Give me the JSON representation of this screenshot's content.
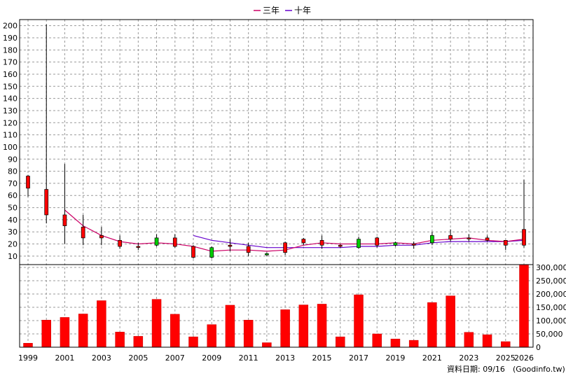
{
  "chart_data": {
    "type": "candlestick+bar",
    "legend": [
      {
        "label": "三年",
        "color": "#cc0066"
      },
      {
        "label": "十年",
        "color": "#6600cc"
      }
    ],
    "price_axis": {
      "ticks": [
        10,
        20,
        30,
        40,
        50,
        60,
        70,
        80,
        90,
        100,
        110,
        120,
        130,
        140,
        150,
        160,
        170,
        180,
        190,
        200
      ],
      "ylim": [
        3,
        205
      ]
    },
    "volume_axis": {
      "ticks": [
        0,
        50000,
        100000,
        150000,
        200000,
        250000,
        300000
      ],
      "tick_labels": [
        "0",
        "50,000",
        "100,000",
        "150,000",
        "200,000",
        "250,000",
        "300,000"
      ],
      "ylim": [
        0,
        300000
      ]
    },
    "x_axis": {
      "range": [
        1999,
        2026
      ],
      "tick_labels": [
        "1999",
        "2001",
        "2003",
        "2005",
        "2007",
        "2009",
        "2011",
        "2013",
        "2015",
        "2017",
        "2019",
        "2021",
        "2023",
        "2025",
        "2026"
      ]
    },
    "candles": [
      {
        "year": 1999,
        "open": 66,
        "close": 76,
        "high": 77,
        "low": 59
      },
      {
        "year": 2000,
        "open": 44,
        "close": 65,
        "high": 201,
        "low": 37
      },
      {
        "year": 2001,
        "open": 35,
        "close": 44,
        "high": 86,
        "low": 20
      },
      {
        "year": 2002,
        "open": 25,
        "close": 34,
        "high": 44,
        "low": 19
      },
      {
        "year": 2003,
        "open": 25,
        "close": 27,
        "high": 34,
        "low": 19
      },
      {
        "year": 2004,
        "open": 18,
        "close": 23,
        "high": 27,
        "low": 16
      },
      {
        "year": 2005,
        "open": 18,
        "close": 18,
        "high": 21,
        "low": 15
      },
      {
        "year": 2006,
        "open": 25,
        "close": 19,
        "high": 28,
        "low": 18
      },
      {
        "year": 2007,
        "open": 18,
        "close": 25,
        "high": 28,
        "low": 17
      },
      {
        "year": 2008,
        "open": 9,
        "close": 18,
        "high": 19,
        "low": 8
      },
      {
        "year": 2009,
        "open": 17,
        "close": 9,
        "high": 18,
        "low": 8
      },
      {
        "year": 2010,
        "open": 18,
        "close": 19,
        "high": 24,
        "low": 14
      },
      {
        "year": 2011,
        "open": 13,
        "close": 18,
        "high": 21,
        "low": 10
      },
      {
        "year": 2012,
        "open": 12,
        "close": 11,
        "high": 13,
        "low": 10
      },
      {
        "year": 2013,
        "open": 13,
        "close": 21,
        "high": 22,
        "low": 11
      },
      {
        "year": 2014,
        "open": 21,
        "close": 24,
        "high": 25,
        "low": 19
      },
      {
        "year": 2015,
        "open": 19,
        "close": 23,
        "high": 27,
        "low": 16
      },
      {
        "year": 2016,
        "open": 18,
        "close": 19,
        "high": 20,
        "low": 17
      },
      {
        "year": 2017,
        "open": 24,
        "close": 17,
        "high": 26,
        "low": 16
      },
      {
        "year": 2018,
        "open": 19,
        "close": 25,
        "high": 26,
        "low": 17
      },
      {
        "year": 2019,
        "open": 21,
        "close": 19,
        "high": 22,
        "low": 18
      },
      {
        "year": 2020,
        "open": 19,
        "close": 20,
        "high": 22,
        "low": 16
      },
      {
        "year": 2021,
        "open": 27,
        "close": 21,
        "high": 30,
        "low": 19
      },
      {
        "year": 2022,
        "open": 24,
        "close": 27,
        "high": 32,
        "low": 22
      },
      {
        "year": 2023,
        "open": 25,
        "close": 25,
        "high": 28,
        "low": 22
      },
      {
        "year": 2024,
        "open": 23,
        "close": 25,
        "high": 27,
        "low": 22
      },
      {
        "year": 2025,
        "open": 19,
        "close": 23,
        "high": 23,
        "low": 15
      },
      {
        "year": 2026,
        "open": 19,
        "close": 32,
        "high": 73,
        "low": 17
      }
    ],
    "ma3": [
      {
        "year": 2001,
        "value": 48
      },
      {
        "year": 2002,
        "value": 35
      },
      {
        "year": 2003,
        "value": 27
      },
      {
        "year": 2004,
        "value": 22
      },
      {
        "year": 2005,
        "value": 20
      },
      {
        "year": 2006,
        "value": 21
      },
      {
        "year": 2007,
        "value": 20
      },
      {
        "year": 2008,
        "value": 18
      },
      {
        "year": 2009,
        "value": 14
      },
      {
        "year": 2010,
        "value": 15
      },
      {
        "year": 2011,
        "value": 15
      },
      {
        "year": 2012,
        "value": 14
      },
      {
        "year": 2013,
        "value": 15
      },
      {
        "year": 2014,
        "value": 19
      },
      {
        "year": 2015,
        "value": 21
      },
      {
        "year": 2016,
        "value": 20
      },
      {
        "year": 2017,
        "value": 20
      },
      {
        "year": 2018,
        "value": 20
      },
      {
        "year": 2019,
        "value": 21
      },
      {
        "year": 2020,
        "value": 20
      },
      {
        "year": 2021,
        "value": 23
      },
      {
        "year": 2022,
        "value": 24
      },
      {
        "year": 2023,
        "value": 25
      },
      {
        "year": 2024,
        "value": 23
      },
      {
        "year": 2025,
        "value": 22
      },
      {
        "year": 2026,
        "value": 24
      }
    ],
    "ma10": [
      {
        "year": 2008,
        "value": 27
      },
      {
        "year": 2009,
        "value": 23
      },
      {
        "year": 2010,
        "value": 21
      },
      {
        "year": 2011,
        "value": 19
      },
      {
        "year": 2012,
        "value": 17
      },
      {
        "year": 2013,
        "value": 17
      },
      {
        "year": 2014,
        "value": 17
      },
      {
        "year": 2015,
        "value": 17
      },
      {
        "year": 2016,
        "value": 17
      },
      {
        "year": 2017,
        "value": 18
      },
      {
        "year": 2018,
        "value": 18
      },
      {
        "year": 2019,
        "value": 19
      },
      {
        "year": 2020,
        "value": 19
      },
      {
        "year": 2021,
        "value": 21
      },
      {
        "year": 2022,
        "value": 22
      },
      {
        "year": 2023,
        "value": 22
      },
      {
        "year": 2024,
        "value": 22
      },
      {
        "year": 2025,
        "value": 22
      },
      {
        "year": 2026,
        "value": 23
      }
    ],
    "volumes": [
      {
        "year": 1999,
        "value": 15000
      },
      {
        "year": 2000,
        "value": 102000
      },
      {
        "year": 2001,
        "value": 112000
      },
      {
        "year": 2002,
        "value": 125000
      },
      {
        "year": 2003,
        "value": 175000
      },
      {
        "year": 2004,
        "value": 57000
      },
      {
        "year": 2005,
        "value": 41000
      },
      {
        "year": 2006,
        "value": 180000
      },
      {
        "year": 2007,
        "value": 124000
      },
      {
        "year": 2008,
        "value": 39000
      },
      {
        "year": 2009,
        "value": 85000
      },
      {
        "year": 2010,
        "value": 158000
      },
      {
        "year": 2011,
        "value": 102000
      },
      {
        "year": 2012,
        "value": 17000
      },
      {
        "year": 2013,
        "value": 141000
      },
      {
        "year": 2014,
        "value": 159000
      },
      {
        "year": 2015,
        "value": 162000
      },
      {
        "year": 2016,
        "value": 39000
      },
      {
        "year": 2017,
        "value": 197000
      },
      {
        "year": 2018,
        "value": 50000
      },
      {
        "year": 2019,
        "value": 31000
      },
      {
        "year": 2020,
        "value": 26000
      },
      {
        "year": 2021,
        "value": 168000
      },
      {
        "year": 2022,
        "value": 193000
      },
      {
        "year": 2023,
        "value": 56000
      },
      {
        "year": 2024,
        "value": 47000
      },
      {
        "year": 2025,
        "value": 21000
      },
      {
        "year": 2026,
        "value": 310000
      }
    ],
    "colors": {
      "up": "#ff0000",
      "down": "#00cc00",
      "volume": "#ff0000",
      "grid": "#999999",
      "wick": "#000000"
    }
  },
  "footer": {
    "date_label": "資料日期: 09/16",
    "source": "(Goodinfo.tw)"
  }
}
